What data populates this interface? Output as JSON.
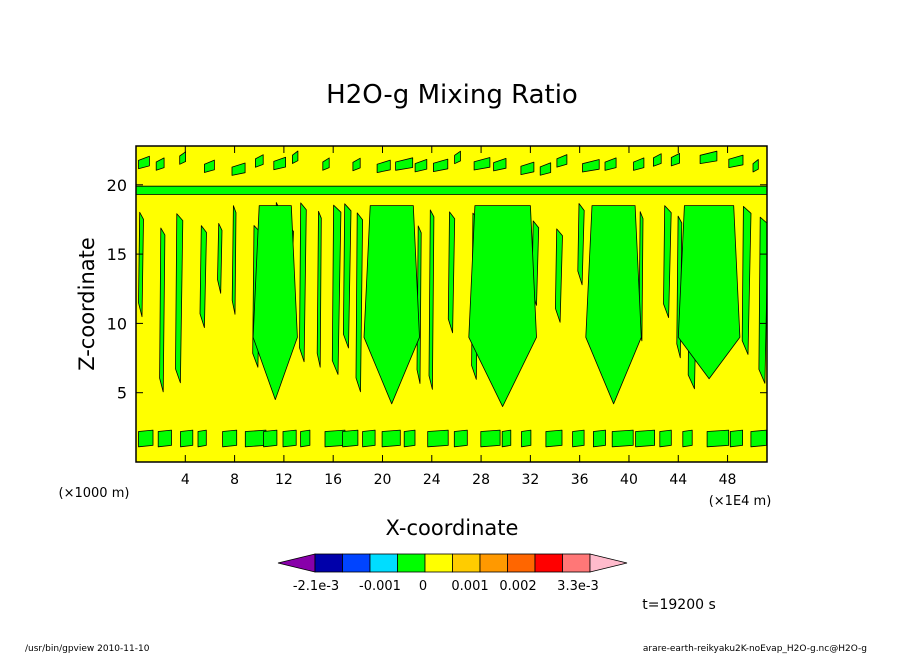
{
  "chart_data": {
    "type": "heatmap",
    "title": "H2O-g Mixing Ratio",
    "xlabel": "X-coordinate",
    "ylabel": "Z-coordinate",
    "x_unit_left": "(×1000 m)",
    "x_unit_right": "(×1E4 m)",
    "xlim": [
      0,
      51.2
    ],
    "ylim": [
      0,
      22.8
    ],
    "x_ticks": [
      4,
      8,
      12,
      16,
      20,
      24,
      28,
      32,
      36,
      40,
      44,
      48
    ],
    "x_tick_labels": [
      "4",
      "8",
      "12",
      "16",
      "20",
      "24",
      "28",
      "32",
      "36",
      "40",
      "44",
      "48"
    ],
    "y_ticks": [
      5,
      10,
      15,
      20
    ],
    "y_tick_labels": [
      "5",
      "10",
      "15",
      "20"
    ],
    "field_colors": {
      "positive": "#ffff00",
      "negative": "#00ff00",
      "contour": "#000000"
    },
    "colorbar": {
      "colors": [
        "#8800aa",
        "#0000aa",
        "#0044ff",
        "#00ddff",
        "#00ff00",
        "#ffff00",
        "#ffcc00",
        "#ff9900",
        "#ff6600",
        "#ff0000",
        "#ff7777",
        "#ffbbcc"
      ],
      "labels": [
        "-2.1e-3",
        "-0.001",
        "0",
        "0.001",
        "0.002",
        "3.3e-3"
      ]
    },
    "time_label": "t=19200 s"
  },
  "footer": {
    "left": "/usr/bin/gpview  2010-11-10",
    "right": "arare-earth-reikyaku2K-noEvap_H2O-g.nc@H2O-g"
  }
}
